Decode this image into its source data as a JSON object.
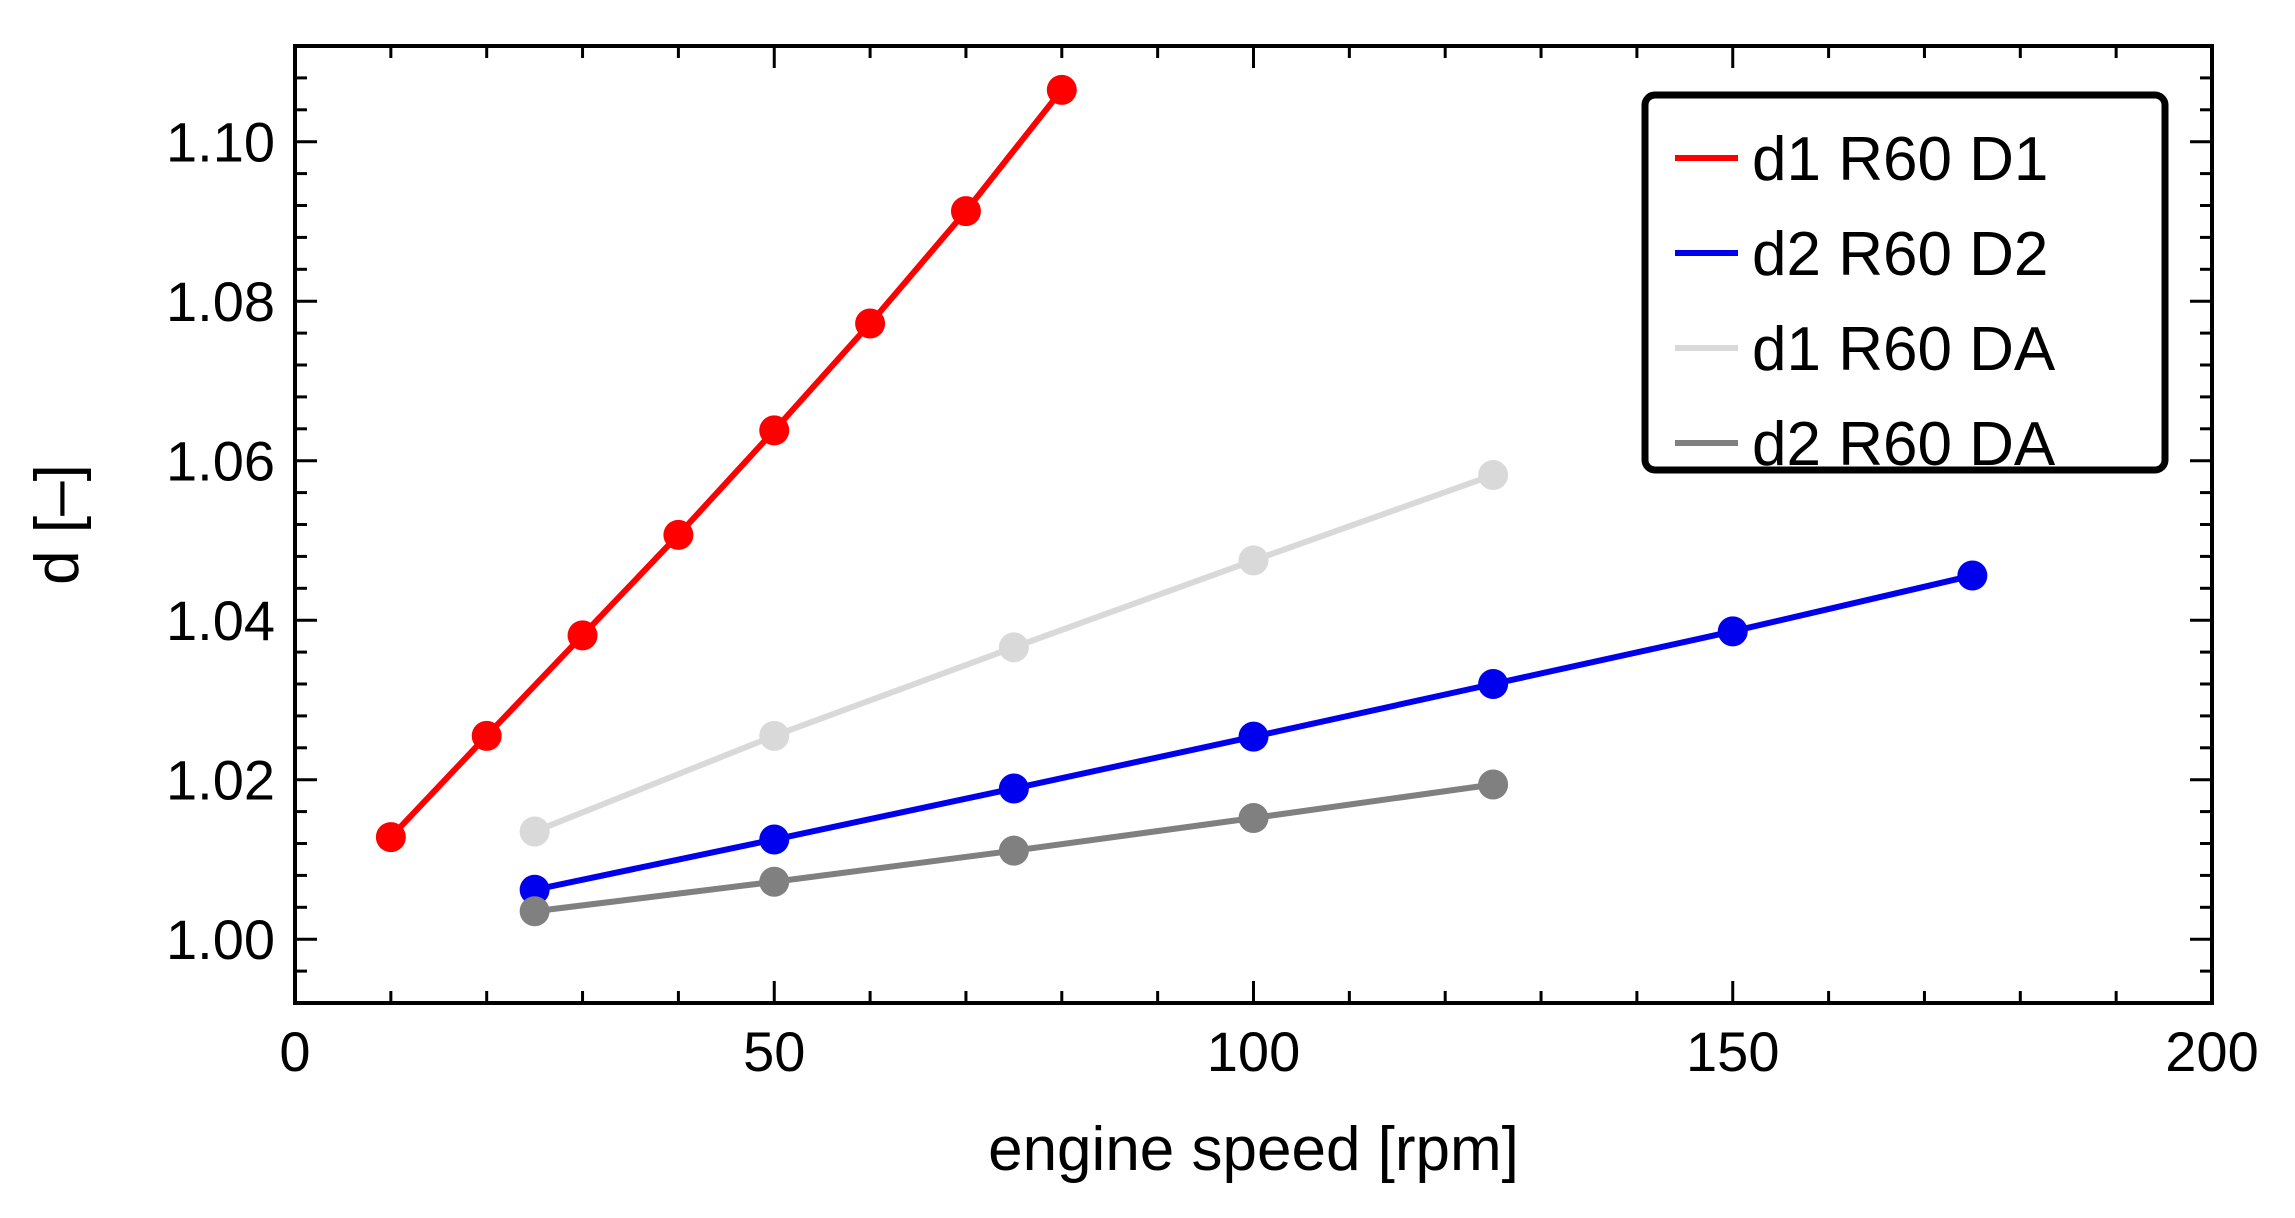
{
  "chart_data": {
    "type": "line",
    "title": "",
    "xlabel": "engine speed [rpm]",
    "ylabel": "d [–]",
    "xlim": [
      0,
      200
    ],
    "ylim": [
      0.992,
      1.112
    ],
    "xticks": [
      0,
      50,
      100,
      150,
      200
    ],
    "xtick_labels": [
      "0",
      "50",
      "100",
      "150",
      "200"
    ],
    "yticks": [
      1.0,
      1.02,
      1.04,
      1.06,
      1.08,
      1.1
    ],
    "ytick_labels": [
      "1.00",
      "1.02",
      "1.04",
      "1.06",
      "1.08",
      "1.10"
    ],
    "grid": false,
    "legend_position": "top-right",
    "series": [
      {
        "name": "d1 R60 D1",
        "color": "#ff0000",
        "x": [
          10,
          20,
          30,
          40,
          50,
          60,
          70,
          80
        ],
        "y": [
          1.0128,
          1.0255,
          1.0381,
          1.0507,
          1.0638,
          1.0772,
          1.0913,
          1.1065
        ]
      },
      {
        "name": "d2 R60 D2",
        "color": "#0000ee",
        "x": [
          25,
          50,
          75,
          100,
          125,
          150,
          175
        ],
        "y": [
          1.0062,
          1.0125,
          1.0189,
          1.0254,
          1.032,
          1.0386,
          1.0456
        ]
      },
      {
        "name": "d1 R60 DA",
        "color": "#d9d9d9",
        "x": [
          25,
          50,
          75,
          100,
          125
        ],
        "y": [
          1.0135,
          1.0255,
          1.0366,
          1.0475,
          1.0582
        ]
      },
      {
        "name": "d2 R60 DA",
        "color": "#808080",
        "x": [
          25,
          50,
          75,
          100,
          125
        ],
        "y": [
          1.0035,
          1.0072,
          1.0111,
          1.0152,
          1.0194
        ]
      }
    ]
  }
}
